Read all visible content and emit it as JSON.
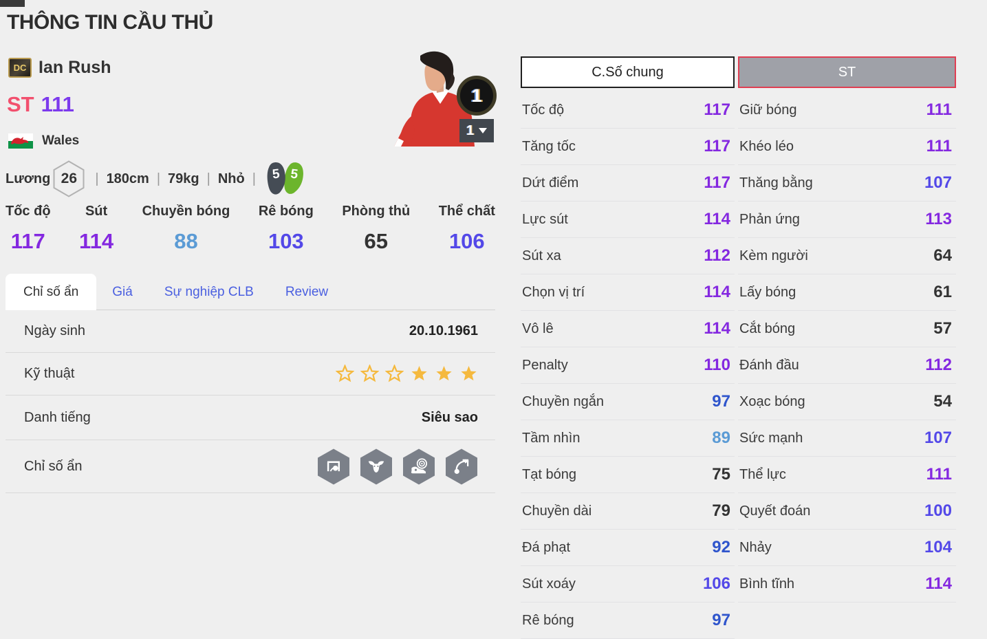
{
  "page": {
    "title": "THÔNG TIN CẦU THỦ"
  },
  "player": {
    "badge": "DC",
    "name": "Ian Rush",
    "position": "ST",
    "ovr": "111",
    "nation": "Wales",
    "salary_label": "Lương",
    "salary": "26",
    "height": "180cm",
    "weight": "79kg",
    "body_type": "Nhỏ",
    "foot_left": "5",
    "foot_right": "5",
    "grade": "1",
    "grade_selected": "1"
  },
  "summary_stats": [
    {
      "label": "Tốc độ",
      "value": 117
    },
    {
      "label": "Sút",
      "value": 114
    },
    {
      "label": "Chuyền bóng",
      "value": 88
    },
    {
      "label": "Rê bóng",
      "value": 103
    },
    {
      "label": "Phòng thủ",
      "value": 65
    },
    {
      "label": "Thể chất",
      "value": 106
    }
  ],
  "tabs": [
    {
      "label": "Chỉ số ẩn",
      "active": true
    },
    {
      "label": "Giá",
      "active": false
    },
    {
      "label": "Sự nghiệp CLB",
      "active": false
    },
    {
      "label": "Review",
      "active": false
    }
  ],
  "details": {
    "birth": {
      "label": "Ngày sinh",
      "value": "20.10.1961"
    },
    "skill": {
      "label": "Kỹ thuật",
      "stars_empty": 3,
      "stars_filled": 3
    },
    "fame": {
      "label": "Danh tiếng",
      "value": "Siêu sao"
    },
    "hidden": {
      "label": "Chỉ số ẩn",
      "icons": [
        "goal-poacher",
        "buffalo",
        "boot-target",
        "chip-shot"
      ]
    }
  },
  "stat_columns": [
    {
      "header": "C.Số chung",
      "active": false,
      "stats": [
        {
          "label": "Tốc độ",
          "value": 117
        },
        {
          "label": "Tăng tốc",
          "value": 117
        },
        {
          "label": "Dứt điểm",
          "value": 117
        },
        {
          "label": "Lực sút",
          "value": 114
        },
        {
          "label": "Sút xa",
          "value": 112
        },
        {
          "label": "Chọn vị trí",
          "value": 114
        },
        {
          "label": "Vô lê",
          "value": 114
        },
        {
          "label": "Penalty",
          "value": 110
        },
        {
          "label": "Chuyền ngắn",
          "value": 97
        },
        {
          "label": "Tầm nhìn",
          "value": 89
        },
        {
          "label": "Tạt bóng",
          "value": 75
        },
        {
          "label": "Chuyền dài",
          "value": 79
        },
        {
          "label": "Đá phạt",
          "value": 92
        },
        {
          "label": "Sút xoáy",
          "value": 106
        },
        {
          "label": "Rê bóng",
          "value": 97
        }
      ]
    },
    {
      "header": "ST",
      "active": true,
      "stats": [
        {
          "label": "Giữ bóng",
          "value": 111
        },
        {
          "label": "Khéo léo",
          "value": 111
        },
        {
          "label": "Thăng bằng",
          "value": 107
        },
        {
          "label": "Phản ứng",
          "value": 113
        },
        {
          "label": "Kèm người",
          "value": 64
        },
        {
          "label": "Lấy bóng",
          "value": 61
        },
        {
          "label": "Cắt bóng",
          "value": 57
        },
        {
          "label": "Đánh đầu",
          "value": 112
        },
        {
          "label": "Xoạc bóng",
          "value": 54
        },
        {
          "label": "Sức mạnh",
          "value": 107
        },
        {
          "label": "Thể lực",
          "value": 111
        },
        {
          "label": "Quyết đoán",
          "value": 100
        },
        {
          "label": "Nhảy",
          "value": 104
        },
        {
          "label": "Bình tĩnh",
          "value": 114
        }
      ]
    }
  ],
  "colors": {
    "tier_purple": "#8428E0",
    "tier_violet": "#5348E8",
    "tier_blue": "#2F55CC",
    "tier_lightblue": "#5B9BD5",
    "tier_dark": "#333333",
    "position_pink": "#F2506E",
    "ovr_purple": "#7C3AED",
    "star_gold": "#F5B93E",
    "st_button_border": "#E03E52",
    "boot_dark": "#454C55",
    "boot_green": "#6CB52C",
    "hex_gray": "#7B8089"
  }
}
